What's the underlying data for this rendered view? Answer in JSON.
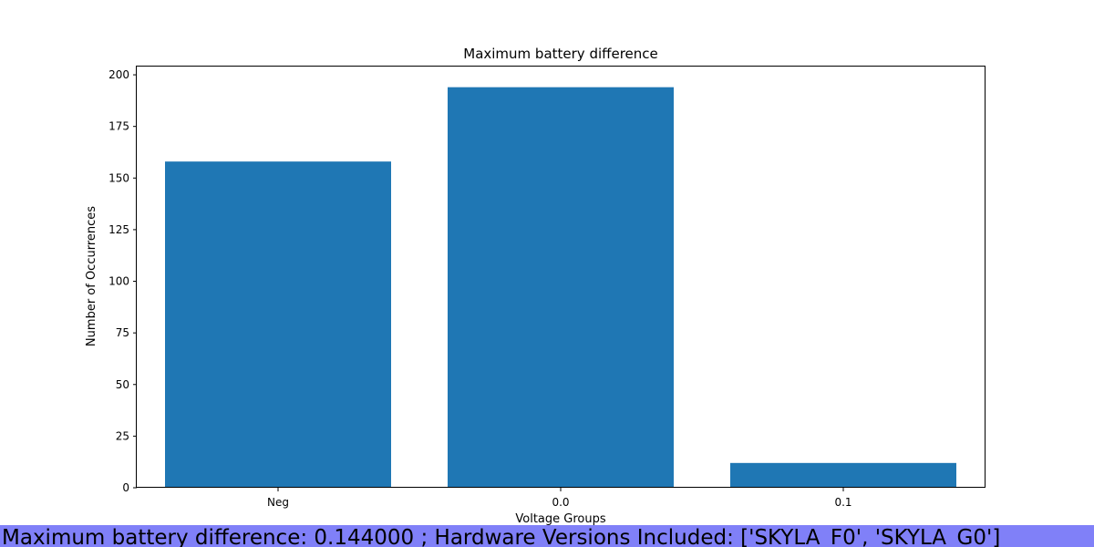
{
  "chart_data": {
    "type": "bar",
    "title": "Maximum battery difference",
    "xlabel": "Voltage Groups",
    "ylabel": "Number of Occurrences",
    "categories": [
      "Neg",
      "0.0",
      "0.1"
    ],
    "values": [
      158,
      194,
      12
    ],
    "ylim": [
      0,
      204
    ],
    "yticks": [
      0,
      25,
      50,
      75,
      100,
      125,
      150,
      175,
      200
    ],
    "grid": false,
    "bar_color": "#1f77b4"
  },
  "footer": {
    "text": "Maximum battery difference: 0.144000 ; Hardware Versions Included: ['SKYLA_F0', 'SKYLA_G0']",
    "background": "#8080f8"
  }
}
